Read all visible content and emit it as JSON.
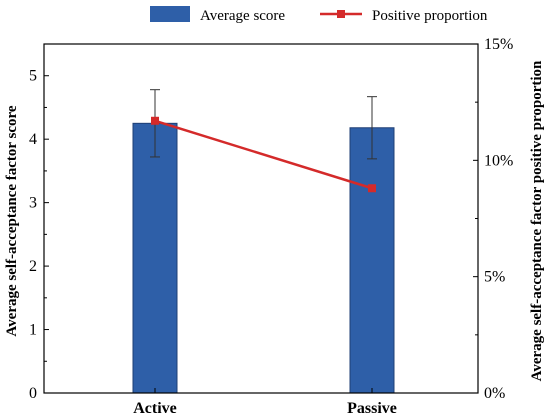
{
  "chart_data": {
    "type": "bar",
    "categories": [
      "Active",
      "Passive"
    ],
    "series": [
      {
        "name": "Average score",
        "kind": "bar",
        "axis": "left",
        "values": [
          4.25,
          4.18
        ],
        "errors": [
          0.53,
          0.49
        ],
        "color": "#2e5fa8"
      },
      {
        "name": "Positive proportion",
        "kind": "line",
        "axis": "right",
        "values": [
          11.7,
          8.8
        ],
        "color": "#d42a2a"
      }
    ],
    "ylabel": "Average self-acceptance factor score",
    "y2label": "Average self-acceptance factor  positive proportion",
    "ylim": [
      0,
      5.5
    ],
    "y2lim": [
      0,
      15
    ],
    "yticks": [
      "0",
      "1",
      "2",
      "3",
      "4",
      "5"
    ],
    "y2ticks": [
      "0%",
      "5%",
      "10%",
      "15%"
    ],
    "legend_position": "top-center",
    "grid": false
  }
}
